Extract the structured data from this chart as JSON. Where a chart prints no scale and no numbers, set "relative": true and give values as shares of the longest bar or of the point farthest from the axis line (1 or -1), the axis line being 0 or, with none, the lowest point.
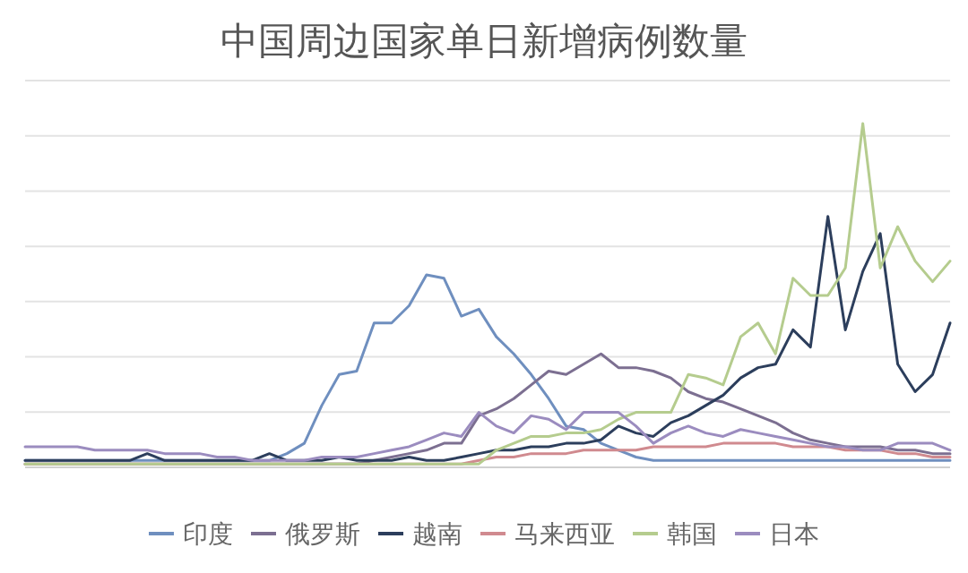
{
  "chart_data": {
    "type": "line",
    "title": "中国周边国家单日新增病例数量",
    "relative": true,
    "grid": "y",
    "legend": "bottom",
    "marker": "none",
    "line_style": "solid",
    "categories": [
      null,
      null,
      null,
      null,
      null,
      null,
      null,
      null,
      null,
      null,
      null,
      null,
      null,
      null,
      null,
      null,
      null,
      null,
      null,
      null,
      null,
      null,
      null,
      null,
      null,
      null,
      null,
      null,
      null,
      null,
      null,
      null,
      null,
      null,
      null,
      null,
      null,
      null,
      null,
      null,
      null,
      null,
      null,
      null,
      null,
      null,
      null,
      null,
      null,
      null,
      null,
      null,
      null,
      null
    ],
    "series": [
      {
        "name": "印度",
        "color": "#6f8fbf",
        "values": [
          0.02,
          0.02,
          0.02,
          0.02,
          0.02,
          0.02,
          0.02,
          0.02,
          0.02,
          0.02,
          0.02,
          0.02,
          0.02,
          0.02,
          0.02,
          0.04,
          0.07,
          0.18,
          0.27,
          0.28,
          0.42,
          0.42,
          0.47,
          0.56,
          0.55,
          0.44,
          0.46,
          0.38,
          0.33,
          0.27,
          0.2,
          0.12,
          0.11,
          0.07,
          0.05,
          0.03,
          0.02,
          0.02,
          0.02,
          0.02,
          0.02,
          0.02,
          0.02,
          0.02,
          0.02,
          0.02,
          0.02,
          0.02,
          0.02,
          0.02,
          0.02,
          0.02,
          0.02,
          0.02
        ]
      },
      {
        "name": "俄罗斯",
        "color": "#7c6f91",
        "values": [
          0.01,
          0.01,
          0.01,
          0.01,
          0.01,
          0.01,
          0.01,
          0.01,
          0.01,
          0.01,
          0.01,
          0.01,
          0.01,
          0.01,
          0.01,
          0.01,
          0.01,
          0.01,
          0.01,
          0.01,
          0.02,
          0.03,
          0.04,
          0.05,
          0.07,
          0.07,
          0.15,
          0.17,
          0.2,
          0.24,
          0.28,
          0.27,
          0.3,
          0.33,
          0.29,
          0.29,
          0.28,
          0.26,
          0.22,
          0.2,
          0.19,
          0.17,
          0.15,
          0.13,
          0.1,
          0.08,
          0.07,
          0.06,
          0.06,
          0.06,
          0.05,
          0.05,
          0.04,
          0.04
        ]
      },
      {
        "name": "越南",
        "color": "#2c3e5c",
        "values": [
          0.02,
          0.02,
          0.02,
          0.02,
          0.02,
          0.02,
          0.02,
          0.04,
          0.02,
          0.02,
          0.02,
          0.02,
          0.02,
          0.02,
          0.04,
          0.02,
          0.02,
          0.02,
          0.03,
          0.02,
          0.02,
          0.02,
          0.03,
          0.02,
          0.02,
          0.03,
          0.04,
          0.05,
          0.05,
          0.06,
          0.06,
          0.07,
          0.07,
          0.08,
          0.12,
          0.1,
          0.09,
          0.13,
          0.15,
          0.18,
          0.21,
          0.26,
          0.29,
          0.3,
          0.4,
          0.35,
          0.73,
          0.4,
          0.57,
          0.68,
          0.3,
          0.22,
          0.27,
          0.42
        ]
      },
      {
        "name": "马来西亚",
        "color": "#d08a8f",
        "values": [
          0.01,
          0.01,
          0.01,
          0.01,
          0.01,
          0.01,
          0.01,
          0.01,
          0.01,
          0.01,
          0.01,
          0.01,
          0.01,
          0.01,
          0.01,
          0.01,
          0.01,
          0.01,
          0.01,
          0.01,
          0.01,
          0.01,
          0.01,
          0.01,
          0.01,
          0.01,
          0.02,
          0.03,
          0.03,
          0.04,
          0.04,
          0.04,
          0.05,
          0.05,
          0.05,
          0.05,
          0.06,
          0.06,
          0.06,
          0.06,
          0.07,
          0.07,
          0.07,
          0.07,
          0.06,
          0.06,
          0.06,
          0.05,
          0.05,
          0.05,
          0.04,
          0.04,
          0.03,
          0.03
        ]
      },
      {
        "name": "韩国",
        "color": "#b5cc8e",
        "values": [
          0.01,
          0.01,
          0.01,
          0.01,
          0.01,
          0.01,
          0.01,
          0.01,
          0.01,
          0.01,
          0.01,
          0.01,
          0.01,
          0.01,
          0.01,
          0.01,
          0.01,
          0.01,
          0.01,
          0.01,
          0.01,
          0.01,
          0.01,
          0.01,
          0.01,
          0.01,
          0.01,
          0.05,
          0.07,
          0.09,
          0.09,
          0.1,
          0.1,
          0.11,
          0.14,
          0.16,
          0.16,
          0.16,
          0.27,
          0.26,
          0.24,
          0.38,
          0.42,
          0.33,
          0.55,
          0.5,
          0.5,
          0.58,
          1,
          0.58,
          0.7,
          0.6,
          0.54,
          0.6
        ]
      },
      {
        "name": "日本",
        "color": "#9b8cbf",
        "values": [
          0.06,
          0.06,
          0.06,
          0.06,
          0.05,
          0.05,
          0.05,
          0.05,
          0.04,
          0.04,
          0.04,
          0.03,
          0.03,
          0.02,
          0.02,
          0.02,
          0.02,
          0.03,
          0.03,
          0.03,
          0.04,
          0.05,
          0.06,
          0.08,
          0.1,
          0.09,
          0.16,
          0.12,
          0.1,
          0.15,
          0.14,
          0.11,
          0.16,
          0.16,
          0.16,
          0.12,
          0.07,
          0.1,
          0.12,
          0.1,
          0.09,
          0.11,
          0.1,
          0.09,
          0.08,
          0.07,
          0.06,
          0.06,
          0.05,
          0.05,
          0.07,
          0.07,
          0.07,
          0.05
        ]
      }
    ]
  }
}
